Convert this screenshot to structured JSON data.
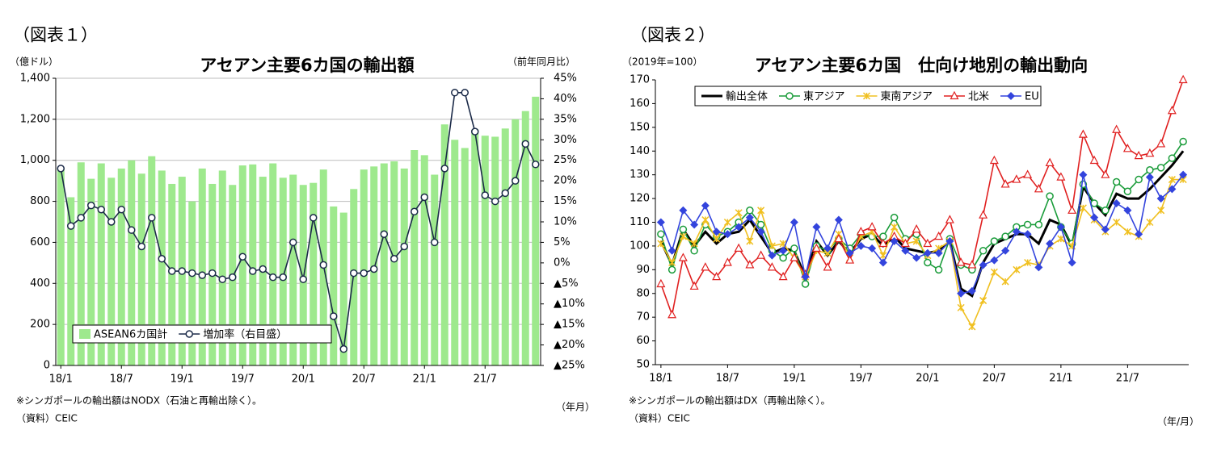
{
  "chart_data": [
    {
      "type": "bar",
      "figure_label": "（図表１）",
      "title": "アセアン主要6カ国の輸出額",
      "y_label": "（億ドル）",
      "y2_label": "（前年同月比）",
      "x_label": "（年月）",
      "note": "※シンガポールの輸出額はNODX（石油と再輸出除く）。",
      "source": "（資料）CEIC",
      "categories": [
        "18/1",
        null,
        null,
        null,
        null,
        null,
        "18/7",
        null,
        null,
        null,
        null,
        null,
        "19/1",
        null,
        null,
        null,
        null,
        null,
        "19/7",
        null,
        null,
        null,
        null,
        null,
        "20/1",
        null,
        null,
        null,
        null,
        null,
        "20/7",
        null,
        null,
        null,
        null,
        null,
        "21/1",
        null,
        null,
        null,
        null,
        null,
        "21/7",
        null,
        null,
        null,
        null,
        null
      ],
      "series": [
        {
          "name": "ASEAN6カ国計",
          "type": "bar",
          "color": "#9ee98d",
          "values": [
            960,
            820,
            990,
            910,
            985,
            915,
            960,
            1000,
            935,
            1020,
            950,
            885,
            920,
            800,
            960,
            885,
            950,
            880,
            975,
            980,
            920,
            985,
            915,
            930,
            880,
            890,
            955,
            775,
            745,
            860,
            955,
            970,
            985,
            995,
            960,
            1050,
            1025,
            930,
            1175,
            1100,
            1060,
            1150,
            1120,
            1115,
            1155,
            1200,
            1240,
            1310
          ]
        },
        {
          "name": "増加率（右目盛）",
          "type": "line",
          "axis": "y2",
          "color": "#1b2a48",
          "marker": "circle-open",
          "values": [
            23,
            9,
            11,
            14,
            13,
            10,
            13,
            8,
            4,
            11,
            1,
            -2,
            -2,
            -2.5,
            -3,
            -2.5,
            -4,
            -3.5,
            1.5,
            -2,
            -1.5,
            -3.5,
            -3.5,
            5,
            -4,
            11,
            -0.5,
            -13,
            -21,
            -2.5,
            -2.5,
            -1.5,
            7,
            1,
            4,
            12.5,
            16,
            5,
            23,
            41.5,
            41.5,
            32,
            16.5,
            15,
            17,
            20,
            29,
            24
          ]
        }
      ],
      "ylim": [
        0,
        1400
      ],
      "yticks": [
        0,
        200,
        400,
        600,
        800,
        {
          "value": 1000,
          "label": "1,000"
        },
        {
          "value": 1200,
          "label": "1,200"
        },
        {
          "value": 1400,
          "label": "1,400"
        }
      ],
      "y2lim": [
        -25,
        45
      ],
      "y2ticks": [
        {
          "value": -25,
          "label": "▲25%"
        },
        {
          "value": -20,
          "label": "▲20%"
        },
        {
          "value": -15,
          "label": "▲15%"
        },
        {
          "value": -10,
          "label": "▲10%"
        },
        {
          "value": -5,
          "label": "▲5%"
        },
        {
          "value": 0,
          "label": "0%"
        },
        {
          "value": 5,
          "label": "5%"
        },
        {
          "value": 10,
          "label": "10%"
        },
        {
          "value": 15,
          "label": "15%"
        },
        {
          "value": 20,
          "label": "20%"
        },
        {
          "value": 25,
          "label": "25%"
        },
        {
          "value": 30,
          "label": "30%"
        },
        {
          "value": 35,
          "label": "35%"
        },
        {
          "value": 40,
          "label": "40%"
        },
        {
          "value": 45,
          "label": "45%"
        }
      ],
      "grid": true,
      "legend": "lower-left"
    },
    {
      "type": "line",
      "figure_label": "（図表２）",
      "title": "アセアン主要6カ国　仕向け地別の輸出動向",
      "y_label": "（2019年=100）",
      "x_label": "（年/月）",
      "note": "※シンガポールの輸出額はDX（再輸出除く）。",
      "source": "（資料）CEIC",
      "categories": [
        "18/1",
        null,
        null,
        null,
        null,
        null,
        "18/7",
        null,
        null,
        null,
        null,
        null,
        "19/1",
        null,
        null,
        null,
        null,
        null,
        "19/7",
        null,
        null,
        null,
        null,
        null,
        "20/1",
        null,
        null,
        null,
        null,
        null,
        "20/7",
        null,
        null,
        null,
        null,
        null,
        "21/1",
        null,
        null,
        null,
        null,
        null,
        "21/7",
        null,
        null,
        null,
        null,
        null
      ],
      "series": [
        {
          "name": "輸出全体",
          "color": "#000000",
          "marker": "none",
          "values": [
            102,
            92,
            107,
            100,
            106,
            101,
            105,
            106,
            111,
            104,
            97,
            99,
            98,
            87,
            102,
            96,
            102,
            97,
            103,
            105,
            100,
            104,
            99,
            98,
            97,
            98,
            102,
            82,
            79,
            93,
            101,
            103,
            105,
            105,
            101,
            111,
            109,
            100,
            125,
            118,
            113,
            122,
            120,
            120,
            124,
            129,
            134,
            140
          ]
        },
        {
          "name": "東アジア",
          "color": "#1a9c3a",
          "marker": "circle-open",
          "values": [
            105,
            90,
            107,
            98,
            109,
            104,
            106,
            110,
            115,
            109,
            98,
            95,
            99,
            84,
            100,
            98,
            103,
            99,
            105,
            104,
            104,
            112,
            103,
            105,
            93,
            90,
            103,
            92,
            90,
            98,
            102,
            104,
            108,
            109,
            109,
            121,
            108,
            101,
            126,
            118,
            115,
            127,
            123,
            128,
            132,
            133,
            137,
            144
          ]
        },
        {
          "name": "東南アジア",
          "color": "#f0c020",
          "marker": "x",
          "values": [
            101,
            93,
            104,
            101,
            111,
            103,
            110,
            114,
            102,
            115,
            100,
            101,
            95,
            87,
            98,
            97,
            105,
            95,
            104,
            106,
            96,
            108,
            101,
            102,
            96,
            99,
            102,
            74,
            66,
            77,
            89,
            85,
            90,
            93,
            92,
            100,
            103,
            100,
            116,
            111,
            106,
            110,
            106,
            104,
            110,
            115,
            128,
            128
          ]
        },
        {
          "name": "北米",
          "color": "#e02020",
          "marker": "triangle-open",
          "values": [
            84,
            71,
            95,
            83,
            91,
            87,
            93,
            99,
            92,
            96,
            91,
            87,
            95,
            88,
            99,
            91,
            103,
            94,
            106,
            108,
            101,
            104,
            101,
            107,
            101,
            104,
            111,
            93,
            92,
            113,
            136,
            126,
            128,
            130,
            124,
            135,
            129,
            115,
            147,
            136,
            130,
            149,
            141,
            138,
            139,
            143,
            157,
            170
          ]
        },
        {
          "name": "EU",
          "color": "#3344dd",
          "marker": "diamond",
          "values": [
            110,
            98,
            115,
            109,
            117,
            106,
            105,
            108,
            112,
            106,
            96,
            98,
            110,
            87,
            108,
            99,
            111,
            97,
            100,
            99,
            93,
            102,
            98,
            95,
            97,
            97,
            102,
            80,
            81,
            92,
            94,
            98,
            106,
            105,
            91,
            101,
            108,
            93,
            130,
            112,
            107,
            118,
            115,
            105,
            129,
            120,
            124,
            130
          ]
        }
      ],
      "ylim": [
        50,
        170
      ],
      "yticks": [
        50,
        60,
        70,
        80,
        90,
        100,
        110,
        120,
        130,
        140,
        150,
        160,
        170
      ],
      "grid": false,
      "legend": "upper-left"
    }
  ]
}
